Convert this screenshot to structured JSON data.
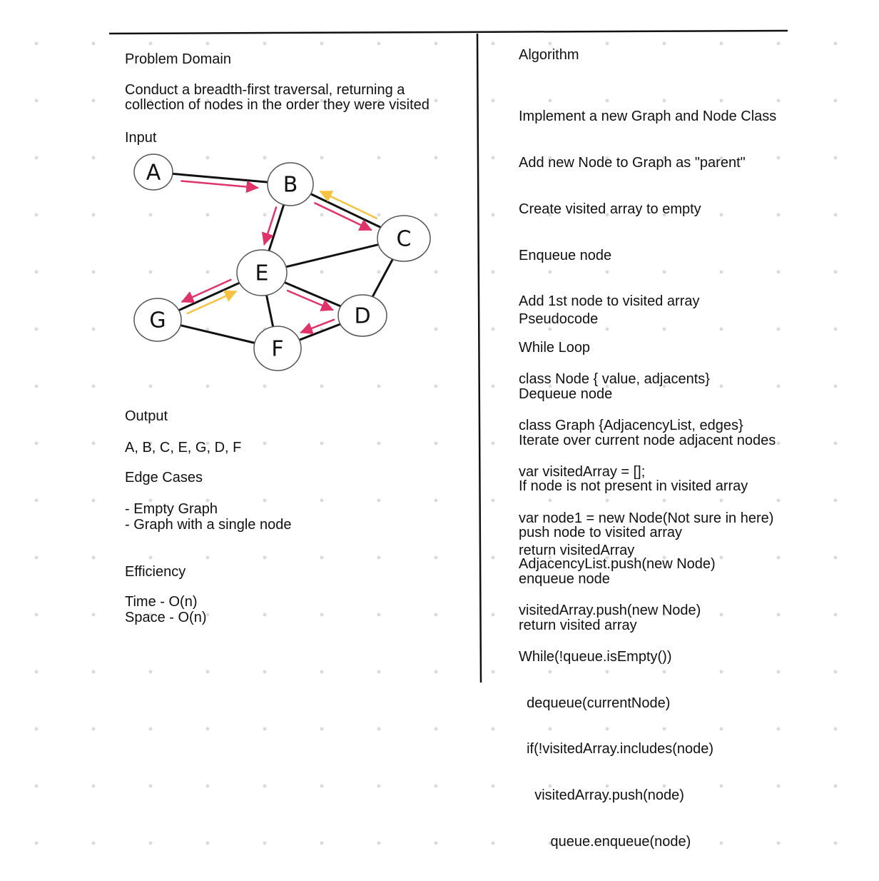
{
  "left": {
    "problem_domain": {
      "heading": "Problem Domain",
      "description": "Conduct a breadth-first traversal, returning a\ncollection of nodes in the order they were visited"
    },
    "input": {
      "heading": "Input"
    },
    "output": {
      "heading": "Output",
      "value": "A, B, C, E, G, D, F"
    },
    "edge_cases": {
      "heading": "Edge Cases",
      "items": [
        "- Empty Graph",
        "- Graph with a single node"
      ]
    },
    "efficiency": {
      "heading": "Efficiency",
      "items": [
        "Time - O(n)",
        "Space - O(n)"
      ]
    }
  },
  "right": {
    "algorithm": {
      "heading": "Algorithm",
      "steps": [
        "Implement a new Graph and Node Class",
        "Add new Node to Graph as \"parent\"",
        "Create visited array to empty",
        "Enqueue node",
        "Add 1st node to visited array",
        "While Loop",
        "Dequeue node",
        "Iterate over current node adjacent nodes",
        "If node is not present in visited array",
        "push node to visited array",
        "enqueue node",
        "return visited array"
      ]
    },
    "pseudocode": {
      "heading": "Pseudocode",
      "lines": [
        "class Node { value, adjacents}",
        "class Graph {AdjacencyList, edges}",
        "var visitedArray = [];",
        "var node1 = new Node(Not sure in here)",
        "AdjacencyList.push(new Node)",
        "visitedArray.push(new Node)",
        "While(!queue.isEmpty())",
        "  dequeue(currentNode)",
        "  if(!visitedArray.includes(node)",
        "    visitedArray.push(node)",
        "        queue.enqueue(node)"
      ],
      "return_line": "return visitedArray"
    }
  },
  "graph": {
    "nodes": [
      {
        "id": "A",
        "label": "A"
      },
      {
        "id": "B",
        "label": "B"
      },
      {
        "id": "C",
        "label": "C"
      },
      {
        "id": "E",
        "label": "E"
      },
      {
        "id": "G",
        "label": "G"
      },
      {
        "id": "D",
        "label": "D"
      },
      {
        "id": "F",
        "label": "F"
      }
    ],
    "edges": [
      [
        "A",
        "B"
      ],
      [
        "B",
        "C"
      ],
      [
        "B",
        "E"
      ],
      [
        "E",
        "C"
      ],
      [
        "C",
        "D"
      ],
      [
        "E",
        "G"
      ],
      [
        "E",
        "D"
      ],
      [
        "E",
        "F"
      ],
      [
        "G",
        "F"
      ],
      [
        "F",
        "D"
      ]
    ],
    "traversal_arrows": [
      {
        "from": "A",
        "to": "B",
        "color": "pink"
      },
      {
        "from": "B",
        "to": "C",
        "color": "pink"
      },
      {
        "from": "B",
        "to": "E",
        "color": "pink"
      },
      {
        "from": "C",
        "to": "B",
        "color": "yellow"
      },
      {
        "from": "E",
        "to": "G",
        "color": "pink"
      },
      {
        "from": "G",
        "to": "E",
        "color": "yellow"
      },
      {
        "from": "E",
        "to": "D",
        "color": "pink"
      },
      {
        "from": "D",
        "to": "F",
        "color": "pink"
      }
    ],
    "colors": {
      "pink": "#e0336a",
      "yellow": "#f5c242",
      "stroke": "#111111"
    }
  }
}
